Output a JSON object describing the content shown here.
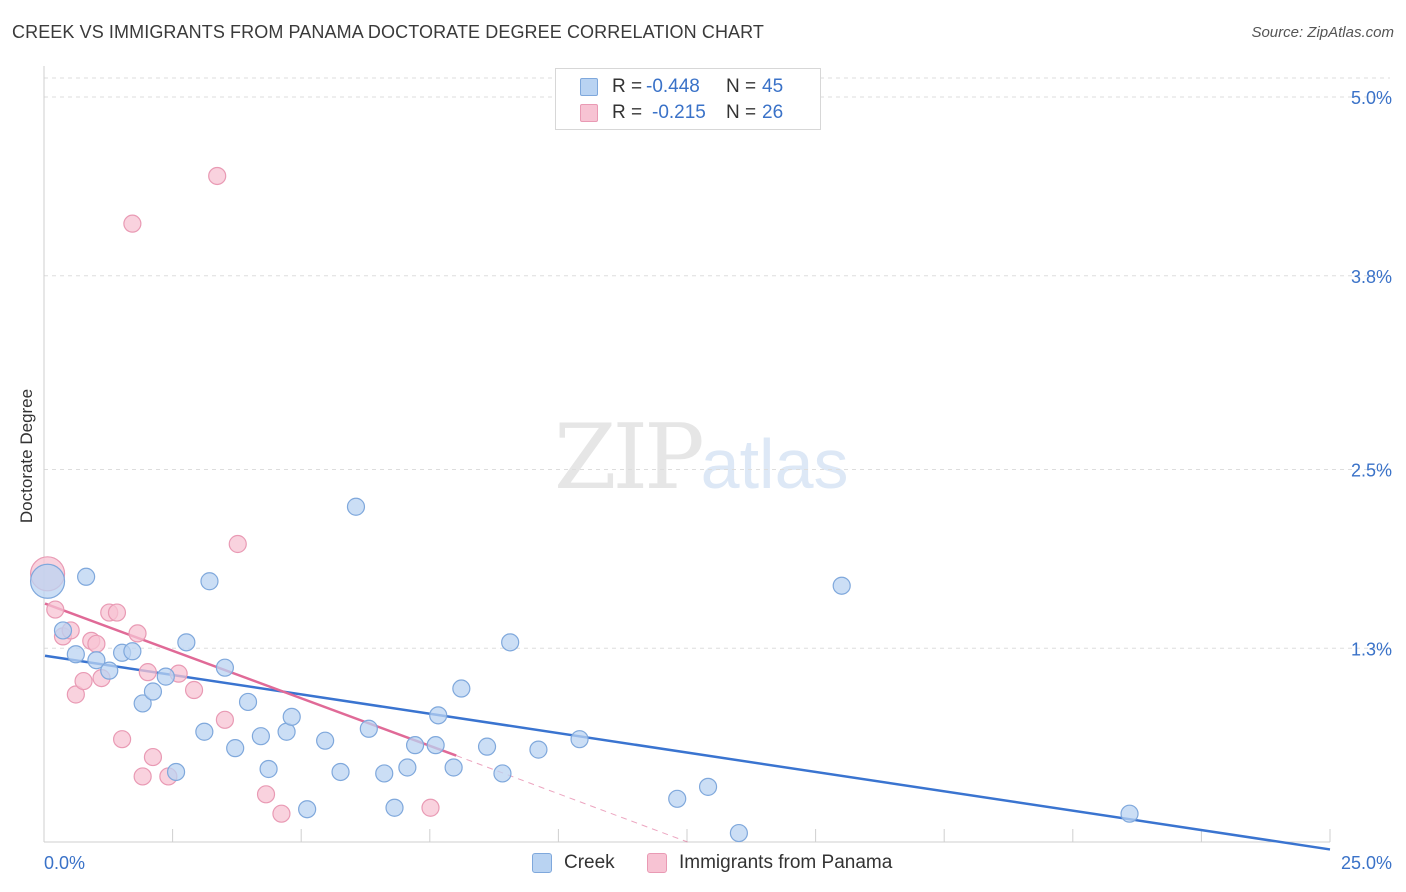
{
  "title": "CREEK VS IMMIGRANTS FROM PANAMA DOCTORATE DEGREE CORRELATION CHART",
  "source": "Source: ZipAtlas.com",
  "watermark": {
    "zip": "ZIP",
    "atlas": "atlas"
  },
  "colors": {
    "creek_fill": "#b9d3f2",
    "creek_stroke": "#7fa8dc",
    "creek_line": "#3a74d0",
    "panama_fill": "#f7c3d3",
    "panama_stroke": "#e99ab4",
    "panama_line": "#e06a97",
    "axis_label": "#3a72c8",
    "grid": "#dddddd"
  },
  "legend": [
    {
      "r_label": "R =",
      "r_value": "-0.448",
      "n_label": "N =",
      "n_value": "45"
    },
    {
      "r_label": "R =",
      "r_value": "-0.215",
      "n_label": "N =",
      "n_value": "26"
    }
  ],
  "chart_data": {
    "type": "scatter",
    "title": "CREEK VS IMMIGRANTS FROM PANAMA DOCTORATE DEGREE CORRELATION CHART",
    "xlabel": "",
    "ylabel": "Doctorate Degree",
    "xlim": [
      0,
      25
    ],
    "ylim": [
      0,
      5.1
    ],
    "x_tick_labels": [
      "0.0%",
      "25.0%"
    ],
    "y_ticks": [
      1.3,
      2.5,
      3.8,
      5.0
    ],
    "y_tick_labels": [
      "1.3%",
      "2.5%",
      "3.8%",
      "5.0%"
    ],
    "grid": true,
    "legend_position": "bottom",
    "series": [
      {
        "name": "Creek",
        "r": -0.448,
        "n": 45,
        "trend": {
          "x": [
            0,
            25
          ],
          "y": [
            1.25,
            -0.05
          ]
        },
        "points": [
          {
            "x": 0.05,
            "y": 1.75,
            "big": true
          },
          {
            "x": 0.8,
            "y": 1.78
          },
          {
            "x": 0.35,
            "y": 1.42
          },
          {
            "x": 0.6,
            "y": 1.26
          },
          {
            "x": 1.0,
            "y": 1.22
          },
          {
            "x": 1.25,
            "y": 1.15
          },
          {
            "x": 1.5,
            "y": 1.27
          },
          {
            "x": 1.7,
            "y": 1.28
          },
          {
            "x": 1.9,
            "y": 0.93
          },
          {
            "x": 2.1,
            "y": 1.01
          },
          {
            "x": 2.35,
            "y": 1.11
          },
          {
            "x": 2.55,
            "y": 0.47
          },
          {
            "x": 2.75,
            "y": 1.34
          },
          {
            "x": 3.1,
            "y": 0.74
          },
          {
            "x": 3.2,
            "y": 1.75
          },
          {
            "x": 3.5,
            "y": 1.17
          },
          {
            "x": 3.7,
            "y": 0.63
          },
          {
            "x": 3.95,
            "y": 0.94
          },
          {
            "x": 4.2,
            "y": 0.71
          },
          {
            "x": 4.35,
            "y": 0.49
          },
          {
            "x": 4.7,
            "y": 0.74
          },
          {
            "x": 4.8,
            "y": 0.84
          },
          {
            "x": 5.1,
            "y": 0.22
          },
          {
            "x": 5.45,
            "y": 0.68
          },
          {
            "x": 5.75,
            "y": 0.47
          },
          {
            "x": 6.05,
            "y": 2.25
          },
          {
            "x": 6.3,
            "y": 0.76
          },
          {
            "x": 6.6,
            "y": 0.46
          },
          {
            "x": 6.8,
            "y": 0.23
          },
          {
            "x": 7.05,
            "y": 0.5
          },
          {
            "x": 7.2,
            "y": 0.65
          },
          {
            "x": 7.6,
            "y": 0.65
          },
          {
            "x": 7.65,
            "y": 0.85
          },
          {
            "x": 7.95,
            "y": 0.5
          },
          {
            "x": 8.1,
            "y": 1.03
          },
          {
            "x": 8.6,
            "y": 0.64
          },
          {
            "x": 8.9,
            "y": 0.46
          },
          {
            "x": 9.05,
            "y": 1.34
          },
          {
            "x": 9.6,
            "y": 0.62
          },
          {
            "x": 10.4,
            "y": 0.69
          },
          {
            "x": 12.3,
            "y": 0.29
          },
          {
            "x": 12.9,
            "y": 0.37
          },
          {
            "x": 13.5,
            "y": 0.06
          },
          {
            "x": 15.5,
            "y": 1.72
          },
          {
            "x": 21.1,
            "y": 0.19
          }
        ]
      },
      {
        "name": "Immigrants from Panama",
        "r": -0.215,
        "n": 26,
        "trend": {
          "x": [
            0,
            8.0,
            12.5
          ],
          "y": [
            1.6,
            0.58,
            0.0
          ],
          "dashed_from": 8.0
        },
        "points": [
          {
            "x": 0.05,
            "y": 1.8,
            "big": true
          },
          {
            "x": 0.2,
            "y": 1.56
          },
          {
            "x": 0.35,
            "y": 1.38
          },
          {
            "x": 0.5,
            "y": 1.42
          },
          {
            "x": 0.6,
            "y": 0.99
          },
          {
            "x": 0.75,
            "y": 1.08
          },
          {
            "x": 0.9,
            "y": 1.35
          },
          {
            "x": 1.0,
            "y": 1.33
          },
          {
            "x": 1.1,
            "y": 1.1
          },
          {
            "x": 1.25,
            "y": 1.54
          },
          {
            "x": 1.4,
            "y": 1.54
          },
          {
            "x": 1.5,
            "y": 0.69
          },
          {
            "x": 1.8,
            "y": 1.4
          },
          {
            "x": 1.9,
            "y": 0.44
          },
          {
            "x": 2.0,
            "y": 1.14
          },
          {
            "x": 2.1,
            "y": 0.57
          },
          {
            "x": 2.4,
            "y": 0.44
          },
          {
            "x": 2.6,
            "y": 1.13
          },
          {
            "x": 2.9,
            "y": 1.02
          },
          {
            "x": 3.5,
            "y": 0.82
          },
          {
            "x": 3.75,
            "y": 2.0
          },
          {
            "x": 4.3,
            "y": 0.32
          },
          {
            "x": 4.6,
            "y": 0.19
          },
          {
            "x": 7.5,
            "y": 0.23
          },
          {
            "x": 1.7,
            "y": 4.15
          },
          {
            "x": 3.35,
            "y": 4.47
          }
        ]
      }
    ]
  }
}
